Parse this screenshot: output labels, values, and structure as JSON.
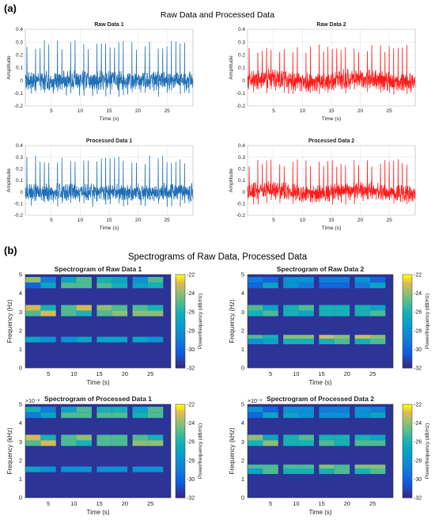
{
  "panels": [
    {
      "letter": "(a)",
      "title": "Raw Data and Processed Data"
    },
    {
      "letter": "(b)",
      "title": "Spectrograms of Raw Data, Processed Data"
    }
  ],
  "chart_data": [
    {
      "type": "line",
      "title": "Raw Data 1",
      "xlabel": "Time (s)",
      "ylabel": "Amplitude",
      "xlim": [
        0.5,
        29.5
      ],
      "ylim": [
        -0.2,
        0.4
      ],
      "xticks": [
        5,
        10,
        15,
        20,
        25
      ],
      "yticks": [
        -0.2,
        -0.1,
        0,
        0.1,
        0.2,
        0.3,
        0.4
      ],
      "color": "#1f6fb5",
      "grid": true,
      "series": [
        {
          "description": "periodic spikes ~1.3 Hz, peaks ~0.25-0.33, baseline noise -0.1 to 0.05",
          "peak": 0.3,
          "floor": -0.12,
          "drift": 0
        }
      ]
    },
    {
      "type": "line",
      "title": "Raw Data 2",
      "xlabel": "Time (s)",
      "ylabel": "Amplitude",
      "xlim": [
        0.5,
        29.5
      ],
      "ylim": [
        -0.2,
        0.4
      ],
      "xticks": [
        5,
        10,
        15,
        20,
        25
      ],
      "yticks": [
        -0.2,
        -0.1,
        0,
        0.1,
        0.2,
        0.3,
        0.4
      ],
      "color": "#ff1a1a",
      "grid": true,
      "series": [
        {
          "description": "periodic spikes ~1.3 Hz, peaks ~0.2-0.31, baseline -0.1 to 0.05",
          "peak": 0.27,
          "floor": -0.1,
          "drift": 1
        }
      ]
    },
    {
      "type": "line",
      "title": "Processed Data 1",
      "xlabel": "Time (s)",
      "ylabel": "Amplitude",
      "xlim": [
        0.5,
        29.5
      ],
      "ylim": [
        -0.2,
        0.4
      ],
      "xticks": [
        5,
        10,
        15,
        20,
        25
      ],
      "yticks": [
        -0.2,
        -0.1,
        0,
        0.1,
        0.2,
        0.3,
        0.4
      ],
      "color": "#1f6fb5",
      "grid": true,
      "series": [
        {
          "description": "periodic spikes ~1.3 Hz, peaks ~0.25-0.33, baseline noise",
          "peak": 0.3,
          "floor": -0.12,
          "drift": 0
        }
      ]
    },
    {
      "type": "line",
      "title": "Processed Data 2",
      "xlabel": "Time (s)",
      "ylabel": "Amplitude",
      "xlim": [
        0.5,
        29.5
      ],
      "ylim": [
        -0.2,
        0.4
      ],
      "xticks": [
        5,
        10,
        15,
        20,
        25
      ],
      "yticks": [
        -0.2,
        -0.1,
        0,
        0.1,
        0.2,
        0.3,
        0.4
      ],
      "color": "#ff1a1a",
      "grid": true,
      "series": [
        {
          "description": "periodic spikes ~1.3 Hz, peaks ~0.2-0.31, baseline noise",
          "peak": 0.27,
          "floor": -0.1,
          "drift": 1
        }
      ]
    },
    {
      "type": "heatmap",
      "title": "Spectrogram of Raw Data 1",
      "xlabel": "Time (s)",
      "ylabel": "Frequency (Hz)",
      "xlim": [
        0.5,
        29
      ],
      "ylim": [
        0,
        5
      ],
      "xticks": [
        5,
        10,
        15,
        20,
        25
      ],
      "yticks": [
        0,
        1,
        2,
        3,
        4,
        5
      ],
      "exponent_label": "",
      "colorbar": {
        "label": "Power/frequency (dB/Hz)",
        "min": -32,
        "max": -22,
        "ticks": [
          -22,
          -24,
          -26,
          -28,
          -30,
          -32
        ]
      },
      "time_bins": [
        2,
        5,
        9,
        12,
        16,
        19,
        23,
        26
      ],
      "bands": [
        {
          "f": 4.7,
          "values": [
            -24,
            -29,
            -27,
            -25,
            -26,
            -27,
            -28,
            -25
          ]
        },
        {
          "f": 4.4,
          "values": [
            -30,
            -27,
            -25,
            -25,
            -25,
            -26,
            -27,
            -26
          ]
        },
        {
          "f": 3.2,
          "values": [
            -23,
            -26,
            -25,
            -23,
            -24,
            -25,
            -25,
            -26
          ]
        },
        {
          "f": 2.9,
          "values": [
            -25,
            -23,
            -25,
            -26,
            -25,
            -24,
            -24,
            -24
          ]
        },
        {
          "f": 1.5,
          "values": [
            -27,
            -28,
            -28,
            -27,
            -27,
            -27,
            -27,
            -28
          ]
        }
      ]
    },
    {
      "type": "heatmap",
      "title": "Spectrogram of Raw Data 2",
      "xlabel": "Time (s)",
      "ylabel": "Frequency (Hz)",
      "xlim": [
        0.5,
        29
      ],
      "ylim": [
        0,
        5
      ],
      "xticks": [
        5,
        10,
        15,
        20,
        25
      ],
      "yticks": [
        0,
        1,
        2,
        3,
        4,
        5
      ],
      "exponent_label": "",
      "colorbar": {
        "label": "Power/frequency (dB/Hz)",
        "min": -32,
        "max": -22,
        "ticks": [
          -22,
          -24,
          -26,
          -28,
          -30,
          -32
        ]
      },
      "time_bins": [
        2,
        5,
        9,
        12,
        16,
        19,
        23,
        26
      ],
      "bands": [
        {
          "f": 4.7,
          "values": [
            -29,
            -30,
            -28,
            -28,
            -29,
            -29,
            -28,
            -30
          ]
        },
        {
          "f": 4.4,
          "values": [
            -30,
            -27,
            -28,
            -29,
            -30,
            -30,
            -29,
            -27
          ]
        },
        {
          "f": 3.2,
          "values": [
            -25,
            -27,
            -26,
            -25,
            -26,
            -26,
            -26,
            -27
          ]
        },
        {
          "f": 2.9,
          "values": [
            -26,
            -25,
            -26,
            -27,
            -26,
            -26,
            -26,
            -25
          ]
        },
        {
          "f": 1.6,
          "values": [
            -25,
            -26,
            -24,
            -24,
            -23,
            -24,
            -23,
            -24
          ]
        },
        {
          "f": 1.4,
          "values": [
            -28,
            -27,
            -26,
            -26,
            -26,
            -25,
            -26,
            -25
          ]
        }
      ]
    },
    {
      "type": "heatmap",
      "title": "Spectrogram of Processed Data 1",
      "xlabel": "Time (s)",
      "ylabel": "Frequency (kHz)",
      "xlim": [
        0.5,
        29
      ],
      "ylim": [
        0,
        5
      ],
      "xticks": [
        5,
        10,
        15,
        20,
        25
      ],
      "yticks": [
        0,
        1,
        2,
        3,
        4,
        5
      ],
      "exponent_label": "×10⁻³",
      "colorbar": {
        "label": "Power/frequency (dB/Hz)",
        "min": -32,
        "max": -22,
        "ticks": [
          -22,
          -24,
          -26,
          -28,
          -30,
          -32
        ]
      },
      "time_bins": [
        2,
        5,
        9,
        12,
        16,
        19,
        23,
        26
      ],
      "bands": [
        {
          "f": 4.7,
          "values": [
            -26,
            -29,
            -27,
            -25,
            -26,
            -26,
            -27,
            -25
          ]
        },
        {
          "f": 4.4,
          "values": [
            -29,
            -27,
            -25,
            -25,
            -25,
            -25,
            -26,
            -25
          ]
        },
        {
          "f": 3.2,
          "values": [
            -23,
            -26,
            -25,
            -24,
            -25,
            -25,
            -25,
            -26
          ]
        },
        {
          "f": 2.9,
          "values": [
            -25,
            -23,
            -25,
            -26,
            -25,
            -25,
            -24,
            -24
          ]
        },
        {
          "f": 1.5,
          "values": [
            -27,
            -28,
            -28,
            -28,
            -28,
            -28,
            -28,
            -28
          ]
        }
      ]
    },
    {
      "type": "heatmap",
      "title": "Spectrogram of Processed Data 2",
      "xlabel": "Time (s)",
      "ylabel": "Frequency (kHz)",
      "xlim": [
        0.5,
        29
      ],
      "ylim": [
        0,
        5
      ],
      "xticks": [
        5,
        10,
        15,
        20,
        25
      ],
      "yticks": [
        0,
        1,
        2,
        3,
        4,
        5
      ],
      "exponent_label": "×10⁻³",
      "colorbar": {
        "label": "Power/frequency (dB/Hz)",
        "min": -32,
        "max": -22,
        "ticks": [
          -22,
          -24,
          -26,
          -28,
          -30,
          -32
        ]
      },
      "time_bins": [
        2,
        5,
        9,
        12,
        16,
        19,
        23,
        26
      ],
      "bands": [
        {
          "f": 4.7,
          "values": [
            -28,
            -30,
            -28,
            -28,
            -29,
            -29,
            -28,
            -29
          ]
        },
        {
          "f": 4.4,
          "values": [
            -30,
            -27,
            -27,
            -28,
            -28,
            -28,
            -28,
            -27
          ]
        },
        {
          "f": 3.2,
          "values": [
            -24,
            -27,
            -26,
            -25,
            -26,
            -26,
            -26,
            -27
          ]
        },
        {
          "f": 2.9,
          "values": [
            -26,
            -24,
            -26,
            -26,
            -25,
            -26,
            -25,
            -25
          ]
        },
        {
          "f": 1.6,
          "values": [
            -25,
            -25,
            -25,
            -25,
            -24,
            -25,
            -24,
            -24
          ]
        },
        {
          "f": 1.4,
          "values": [
            -27,
            -25,
            -26,
            -26,
            -26,
            -25,
            -26,
            -25
          ]
        }
      ]
    }
  ]
}
